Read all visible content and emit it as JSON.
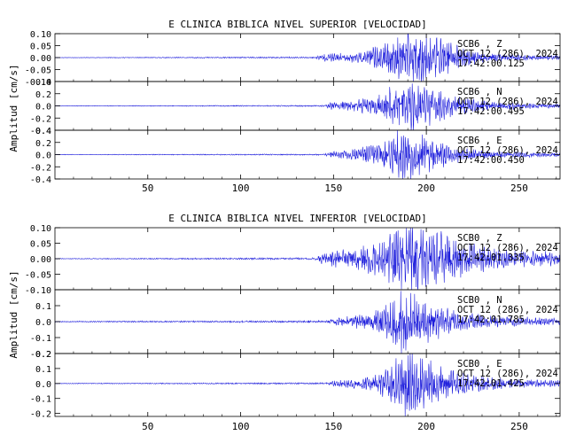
{
  "figure": {
    "ylabel": "Amplitud [cm/s]",
    "trace_color": "#1f1fdc",
    "axis_color": "#000000"
  },
  "chart_data": [
    {
      "type": "line",
      "title": "E CLINICA BIBLICA NIVEL SUPERIOR [VELOCIDAD]",
      "xlabel": "",
      "xlim": [
        0,
        272
      ],
      "xticks": [
        "50",
        "100",
        "150",
        "200",
        "250"
      ],
      "xtick_values": [
        50,
        100,
        150,
        200,
        250
      ],
      "panels": [
        {
          "name": "SCB6",
          "component": "Z",
          "ylim": [
            -0.1,
            0.1
          ],
          "yticks": [
            "0.10",
            "0.05",
            "0.00",
            "-0.05",
            "-0.10"
          ],
          "ytick_values": [
            0.1,
            0.05,
            0.0,
            -0.05,
            -0.1
          ],
          "station_label": "SCB6 , Z",
          "date_label": "OCT 12 (286), 2024",
          "time_label": "17:42:00.125",
          "seed": 11,
          "envelope": [
            [
              0,
              0.001
            ],
            [
              140,
              0.003
            ],
            [
              145,
              0.014
            ],
            [
              165,
              0.02
            ],
            [
              175,
              0.05
            ],
            [
              185,
              0.075
            ],
            [
              190,
              0.1
            ],
            [
              195,
              0.1
            ],
            [
              205,
              0.08
            ],
            [
              215,
              0.05
            ],
            [
              230,
              0.02
            ],
            [
              250,
              0.01
            ],
            [
              272,
              0.008
            ]
          ]
        },
        {
          "name": "SCB6",
          "component": "N",
          "ylim": [
            -0.4,
            0.4
          ],
          "yticks": [
            "0.4",
            "0.2",
            "0.0",
            "-0.2",
            "-0.4"
          ],
          "ytick_values": [
            0.4,
            0.2,
            0.0,
            -0.2,
            -0.4
          ],
          "station_label": "SCB6 , N",
          "date_label": "OCT 12 (286), 2024",
          "time_label": "17:42:00.495",
          "seed": 23,
          "envelope": [
            [
              0,
              0.004
            ],
            [
              145,
              0.01
            ],
            [
              148,
              0.05
            ],
            [
              170,
              0.12
            ],
            [
              180,
              0.28
            ],
            [
              190,
              0.4
            ],
            [
              195,
              0.38
            ],
            [
              205,
              0.25
            ],
            [
              215,
              0.14
            ],
            [
              235,
              0.06
            ],
            [
              272,
              0.03
            ]
          ]
        },
        {
          "name": "SCB6",
          "component": "E",
          "ylim": [
            -0.4,
            0.4
          ],
          "yticks": [
            "0.4",
            "0.2",
            "0.0",
            "-0.2",
            "-0.4"
          ],
          "ytick_values": [
            0.4,
            0.2,
            0.0,
            -0.2,
            -0.4
          ],
          "station_label": "SCB6 , E",
          "date_label": "OCT 12 (286), 2024",
          "time_label": "17:42:00.450",
          "seed": 37,
          "envelope": [
            [
              0,
              0.004
            ],
            [
              145,
              0.01
            ],
            [
              148,
              0.04
            ],
            [
              165,
              0.1
            ],
            [
              178,
              0.22
            ],
            [
              187,
              0.4
            ],
            [
              195,
              0.34
            ],
            [
              205,
              0.22
            ],
            [
              215,
              0.12
            ],
            [
              235,
              0.05
            ],
            [
              272,
              0.03
            ]
          ]
        }
      ]
    },
    {
      "type": "line",
      "title": "E CLINICA BIBLICA NIVEL INFERIOR [VELOCIDAD]",
      "xlabel": "",
      "xlim": [
        0,
        272
      ],
      "xticks": [
        "50",
        "100",
        "150",
        "200",
        "250"
      ],
      "xtick_values": [
        50,
        100,
        150,
        200,
        250
      ],
      "panels": [
        {
          "name": "SCB0",
          "component": "Z",
          "ylim": [
            -0.1,
            0.1
          ],
          "yticks": [
            "0.10",
            "0.05",
            "0.00",
            "-0.05",
            "-0.10"
          ],
          "ytick_values": [
            0.1,
            0.05,
            0.0,
            -0.05,
            -0.1
          ],
          "station_label": "SCB0 , Z",
          "date_label": "OCT 12 (286), 2024",
          "time_label": "17:42:01.335",
          "seed": 41,
          "envelope": [
            [
              0,
              0.001
            ],
            [
              140,
              0.003
            ],
            [
              145,
              0.02
            ],
            [
              160,
              0.03
            ],
            [
              175,
              0.05
            ],
            [
              185,
              0.09
            ],
            [
              195,
              0.1
            ],
            [
              205,
              0.09
            ],
            [
              215,
              0.06
            ],
            [
              235,
              0.03
            ],
            [
              272,
              0.02
            ]
          ]
        },
        {
          "name": "SCB0",
          "component": "N",
          "ylim": [
            -0.2,
            0.2
          ],
          "yticks": [
            "0.1",
            "0.0",
            "-0.1",
            "-0.2"
          ],
          "ytick_values": [
            0.1,
            0.0,
            -0.1,
            -0.2
          ],
          "station_label": "SCB0 , N",
          "date_label": "OCT 12 (286), 2024",
          "time_label": "17:42:01.785",
          "seed": 53,
          "envelope": [
            [
              0,
              0.003
            ],
            [
              145,
              0.006
            ],
            [
              150,
              0.02
            ],
            [
              170,
              0.05
            ],
            [
              180,
              0.12
            ],
            [
              185,
              0.2
            ],
            [
              195,
              0.16
            ],
            [
              205,
              0.1
            ],
            [
              220,
              0.05
            ],
            [
              240,
              0.03
            ],
            [
              272,
              0.02
            ]
          ]
        },
        {
          "name": "SCB0",
          "component": "E",
          "ylim": [
            -0.22,
            0.2
          ],
          "yticks": [
            "0.2",
            "0.1",
            "0.0",
            "-0.1",
            "-0.2"
          ],
          "ytick_values": [
            0.2,
            0.1,
            0.0,
            -0.1,
            -0.2
          ],
          "station_label": "SCB0 , E",
          "date_label": "OCT 12 (286), 2024",
          "time_label": "17:42:01.425",
          "seed": 67,
          "envelope": [
            [
              0,
              0.002
            ],
            [
              145,
              0.005
            ],
            [
              150,
              0.015
            ],
            [
              170,
              0.04
            ],
            [
              180,
              0.1
            ],
            [
              188,
              0.2
            ],
            [
              198,
              0.16
            ],
            [
              210,
              0.09
            ],
            [
              225,
              0.05
            ],
            [
              245,
              0.03
            ],
            [
              272,
              0.02
            ]
          ]
        }
      ]
    }
  ]
}
